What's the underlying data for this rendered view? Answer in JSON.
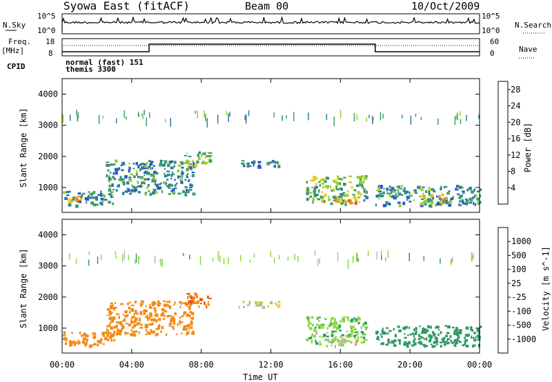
{
  "header": {
    "title": "Syowa East (fitACF)",
    "beam": "Beam 00",
    "date": "10/Oct/2009"
  },
  "status_strip": {
    "nsky_label": "N.Sky",
    "nsky_ticks": [
      "10^5",
      "10^0"
    ],
    "nsearch_label": "N.Search",
    "freq_label": "Freq.",
    "freq_unit": "[MHz]",
    "freq_ticks": [
      "18",
      "8"
    ],
    "nave_label": "Nave",
    "nave_ticks": [
      "60",
      "0"
    ],
    "cpid_label": "CPID",
    "cpid_lines": [
      "normal (fast) 151",
      "themis 3300"
    ],
    "freq_steps_hours": [
      0,
      5,
      18,
      24
    ],
    "freq_levels": [
      0.2,
      0.75,
      0.2
    ]
  },
  "colors": {
    "power_bar": [
      "#1f2fe0",
      "#2a55c8",
      "#2e7a9e",
      "#3f9c6a",
      "#8fd028",
      "#e8c81a",
      "#f09a16",
      "#e86014",
      "#e01010"
    ],
    "velocity_bar": [
      "#e01010",
      "#ec5010",
      "#f08c1a",
      "#f0c030",
      "#b8b8b8",
      "#8ad83c",
      "#2e9a66",
      "#2a6aa0",
      "#1f3ad0"
    ]
  },
  "chart_data": [
    {
      "type": "heatmap",
      "name": "power",
      "xlabel": "Time UT",
      "ylabel": "Slant Range [km]",
      "xlim": [
        0,
        24
      ],
      "ylim": [
        200,
        4500
      ],
      "x_ticks": [
        "00:00",
        "04:00",
        "08:00",
        "12:00",
        "16:00",
        "20:00",
        "00:00"
      ],
      "y_ticks": [
        1000,
        2000,
        3000,
        4000
      ],
      "colorbar": {
        "label": "Power [dB]",
        "ticks": [
          4,
          8,
          12,
          16,
          20,
          24,
          28
        ],
        "range": [
          0,
          30
        ]
      },
      "regions": [
        {
          "t0": 0.0,
          "t1": 3.0,
          "r0": 450,
          "r1": 900,
          "v": 10
        },
        {
          "t0": 0.3,
          "t1": 1.2,
          "r0": 550,
          "r1": 750,
          "v": 20
        },
        {
          "t0": 2.5,
          "t1": 7.5,
          "r0": 800,
          "r1": 1900,
          "v": 10
        },
        {
          "t0": 7.0,
          "t1": 8.5,
          "r0": 1700,
          "r1": 2200,
          "v": 14
        },
        {
          "t0": 10.0,
          "t1": 12.5,
          "r0": 1700,
          "r1": 1900,
          "v": 8
        },
        {
          "t0": 14.0,
          "t1": 17.5,
          "r0": 500,
          "r1": 1400,
          "v": 14
        },
        {
          "t0": 15.5,
          "t1": 17.0,
          "r0": 500,
          "r1": 650,
          "v": 22
        },
        {
          "t0": 18.0,
          "t1": 24.0,
          "r0": 450,
          "r1": 1100,
          "v": 10
        },
        {
          "t0": 20.5,
          "t1": 22.0,
          "r0": 500,
          "r1": 800,
          "v": 18
        },
        {
          "t0": 0.0,
          "t1": 24.0,
          "r0": 3200,
          "r1": 3500,
          "v": 12
        }
      ]
    },
    {
      "type": "heatmap",
      "name": "velocity",
      "xlabel": "Time UT",
      "ylabel": "Slant Range [km]",
      "xlim": [
        0,
        24
      ],
      "ylim": [
        200,
        4500
      ],
      "x_ticks": [
        "00:00",
        "04:00",
        "08:00",
        "12:00",
        "16:00",
        "20:00",
        "00:00"
      ],
      "y_ticks": [
        1000,
        2000,
        3000,
        4000
      ],
      "colorbar": {
        "label": "Velocity [m s^-1]",
        "ticks": [
          "1000",
          "500",
          "100",
          "25",
          "-25",
          "-100",
          "-500",
          "-1000"
        ]
      },
      "regions": [
        {
          "t0": 0.0,
          "t1": 3.0,
          "r0": 450,
          "r1": 900,
          "v": -300
        },
        {
          "t0": 2.5,
          "t1": 7.5,
          "r0": 800,
          "r1": 1900,
          "v": -400
        },
        {
          "t0": 7.0,
          "t1": 8.5,
          "r0": 1700,
          "r1": 2200,
          "v": -500
        },
        {
          "t0": 10.0,
          "t1": 12.5,
          "r0": 1700,
          "r1": 1900,
          "v": 0
        },
        {
          "t0": 14.0,
          "t1": 17.5,
          "r0": 500,
          "r1": 1400,
          "v": 80
        },
        {
          "t0": 15.0,
          "t1": 17.0,
          "r0": 450,
          "r1": 700,
          "v": 0
        },
        {
          "t0": 18.0,
          "t1": 24.0,
          "r0": 450,
          "r1": 1100,
          "v": 300
        },
        {
          "t0": 0.0,
          "t1": 24.0,
          "r0": 3200,
          "r1": 3500,
          "v": 50
        }
      ]
    }
  ]
}
